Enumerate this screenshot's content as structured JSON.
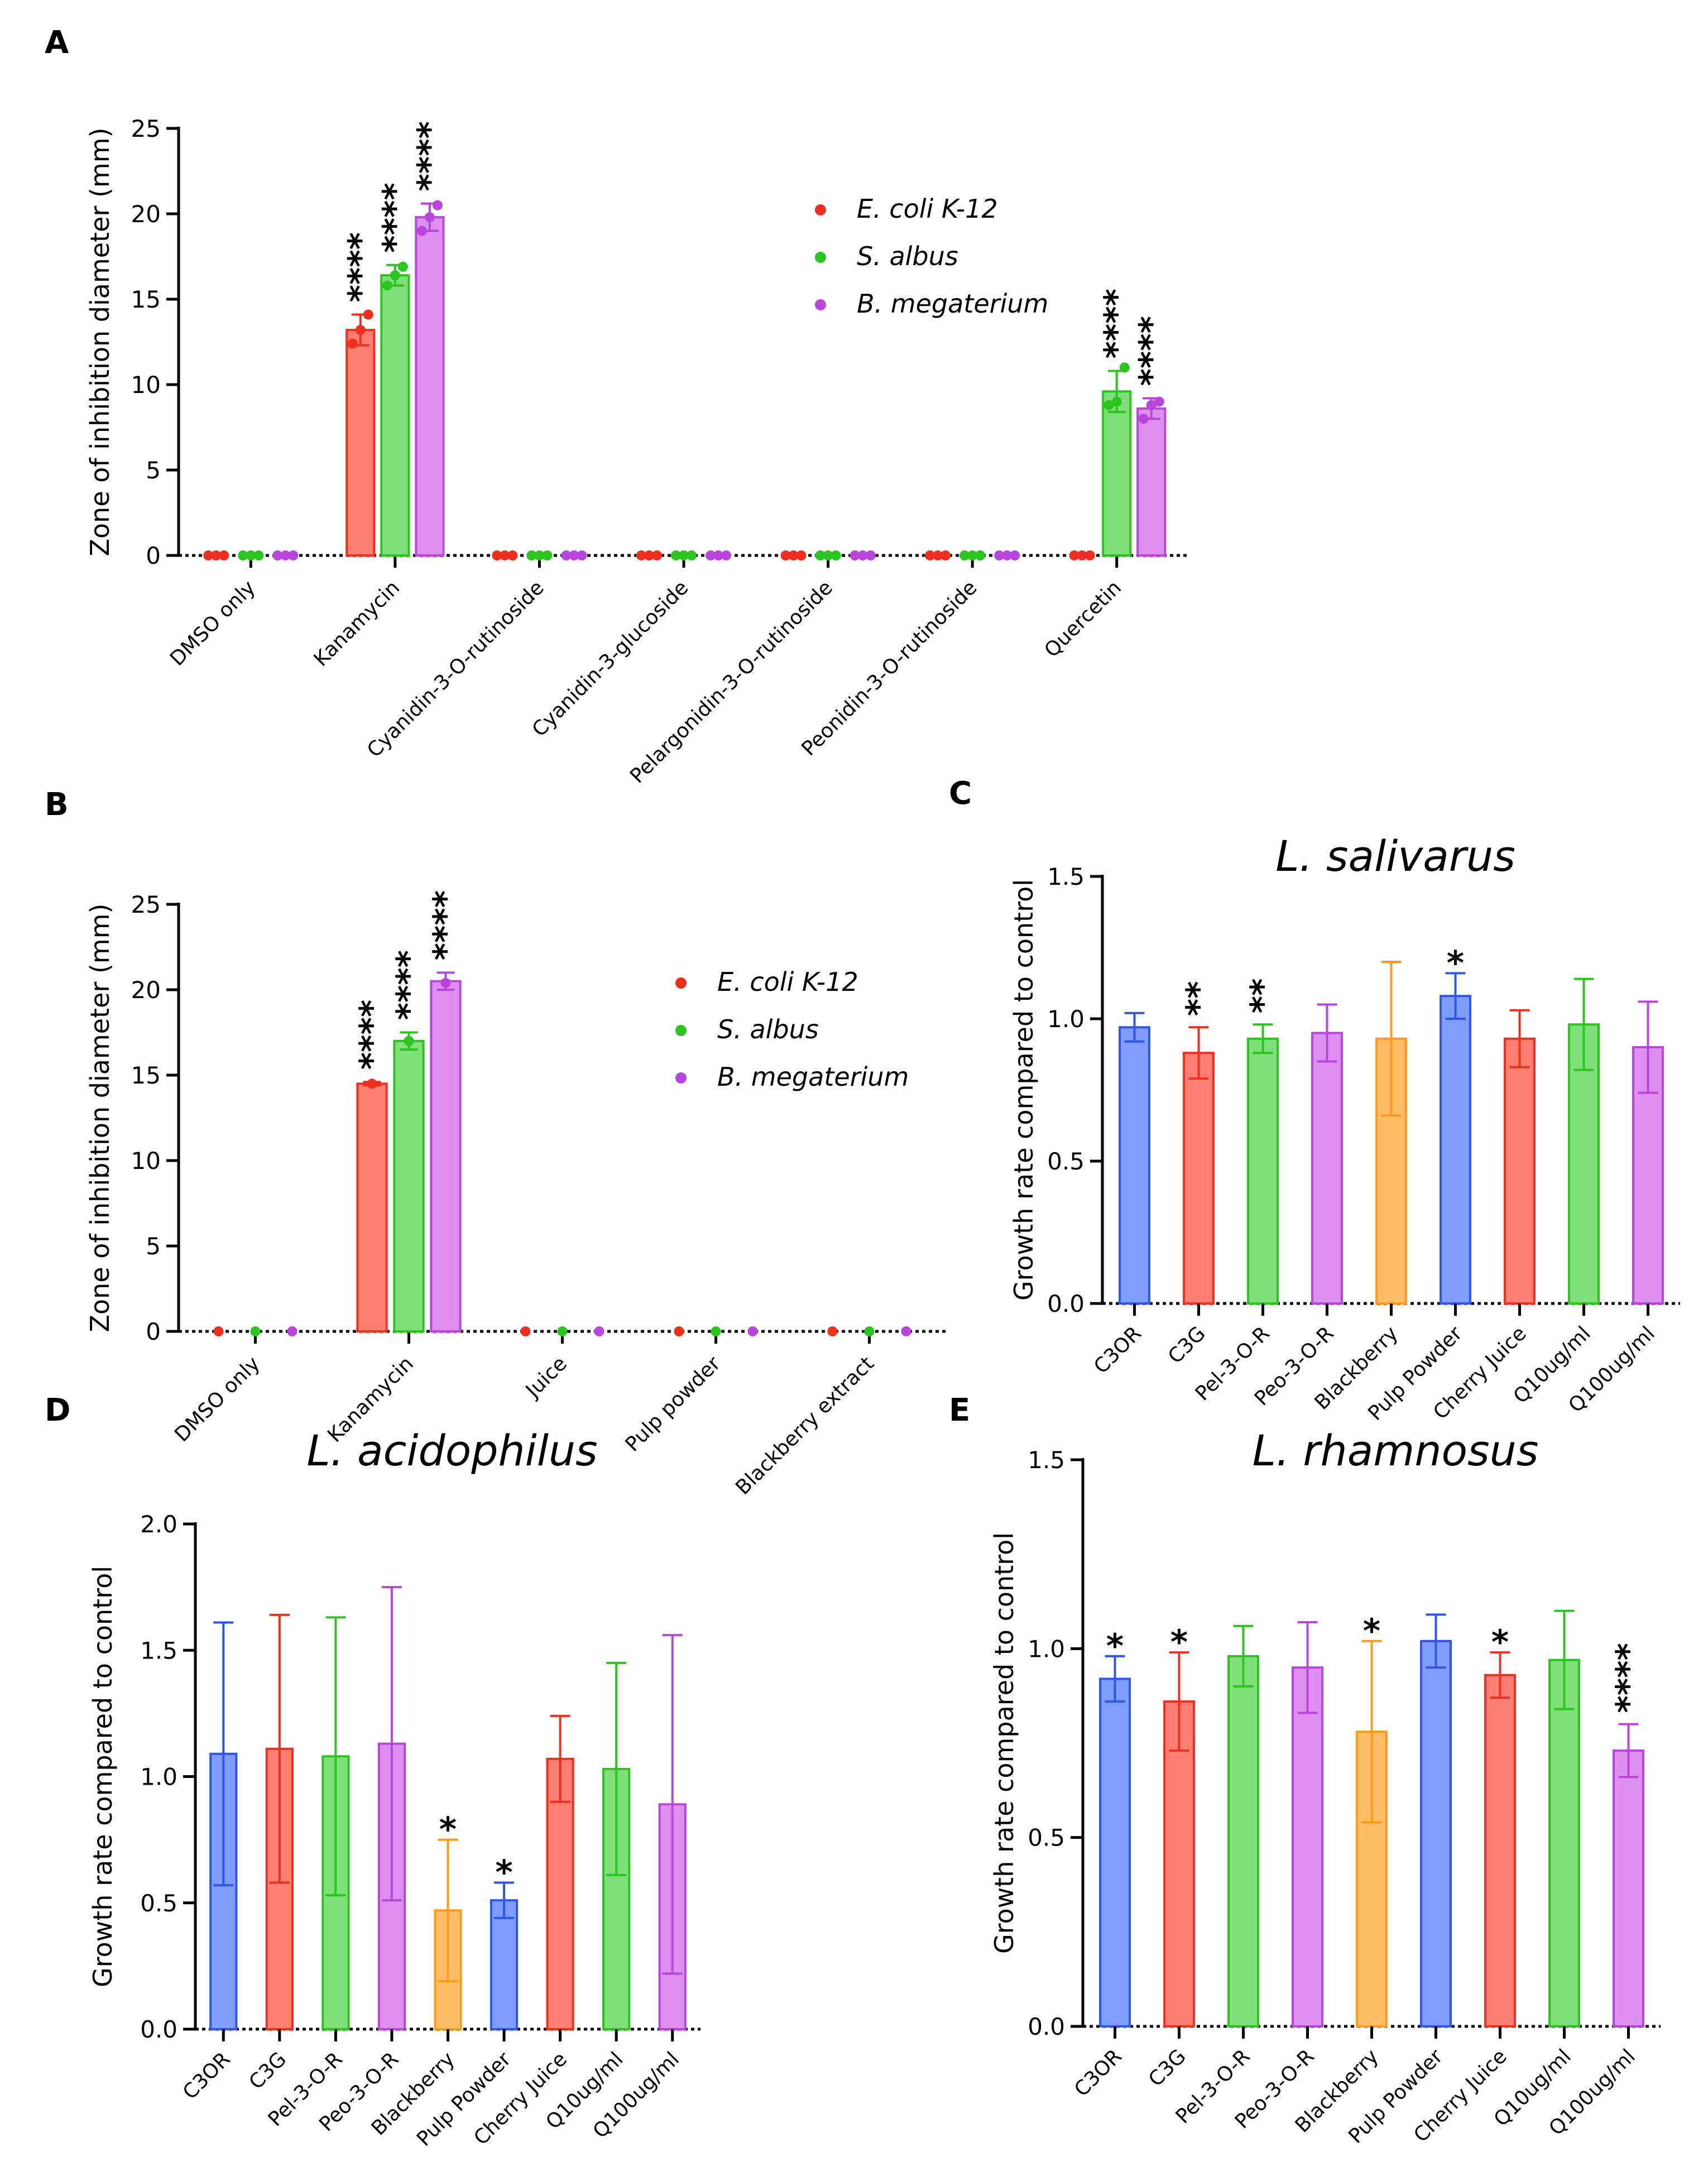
{
  "colors": {
    "red": "#ff7f72",
    "red_edge": "#f0301e",
    "green": "#7fe07a",
    "green_edge": "#2cc41f",
    "purple": "#dd90ef",
    "purple_edge": "#b846dc",
    "blue": "#7f9cff",
    "blue_edge": "#2e56e8",
    "orange": "#ffbe66",
    "orange_edge": "#ff9a1c"
  },
  "chart_data": [
    {
      "panel": "A",
      "type": "bar",
      "title": "",
      "ylabel": "Zone of inhibition diameter (mm)",
      "xlabel": "",
      "ylim": [
        0,
        25
      ],
      "yticks": [
        "0",
        "5",
        "10",
        "15",
        "20",
        "25"
      ],
      "categories": [
        "DMSO only",
        "Kanamycin",
        "Cyanidin-3-O-rutinoside",
        "Cyanidin-3-glucoside",
        "Pelargonidin-3-O-rutinoside",
        "Peonidin-3-O-rutinoside",
        "Quercetin"
      ],
      "legend": {
        "position": "top-right",
        "entries": [
          "E. coli K-12",
          "S. albus",
          "B. megaterium"
        ]
      },
      "series": [
        {
          "name": "E. coli K-12",
          "values": [
            0,
            13.2,
            0,
            0,
            0,
            0,
            0
          ],
          "err": [
            0,
            0.9,
            0,
            0,
            0,
            0,
            0
          ],
          "points": [
            [
              0,
              0,
              0
            ],
            [
              12.4,
              13.2,
              14.1
            ],
            [
              0,
              0,
              0
            ],
            [
              0,
              0,
              0
            ],
            [
              0,
              0,
              0
            ],
            [
              0,
              0,
              0
            ],
            [
              0,
              0,
              0
            ]
          ],
          "stars": [
            "",
            "****",
            "",
            "",
            "",
            "",
            ""
          ]
        },
        {
          "name": "S. albus",
          "values": [
            0,
            16.4,
            0,
            0,
            0,
            0,
            9.6
          ],
          "err": [
            0,
            0.6,
            0,
            0,
            0,
            0,
            1.2
          ],
          "points": [
            [
              0,
              0,
              0
            ],
            [
              15.8,
              16.4,
              16.9
            ],
            [
              0,
              0,
              0
            ],
            [
              0,
              0,
              0
            ],
            [
              0,
              0,
              0
            ],
            [
              0,
              0,
              0
            ],
            [
              8.8,
              9.0,
              11.0
            ]
          ],
          "stars": [
            "",
            "****",
            "",
            "",
            "",
            "",
            "****"
          ]
        },
        {
          "name": "B. megaterium",
          "values": [
            0,
            19.8,
            0,
            0,
            0,
            0,
            8.6
          ],
          "err": [
            0,
            0.8,
            0,
            0,
            0,
            0,
            0.6
          ],
          "points": [
            [
              0,
              0,
              0
            ],
            [
              19.0,
              19.8,
              20.5
            ],
            [
              0,
              0,
              0
            ],
            [
              0,
              0,
              0
            ],
            [
              0,
              0,
              0
            ],
            [
              0,
              0,
              0
            ],
            [
              8.0,
              8.8,
              9.0
            ]
          ],
          "stars": [
            "",
            "****",
            "",
            "",
            "",
            "",
            "****"
          ]
        }
      ]
    },
    {
      "panel": "B",
      "type": "bar",
      "title": "",
      "ylabel": "Zone of inhibition diameter (mm)",
      "xlabel": "",
      "ylim": [
        0,
        25
      ],
      "yticks": [
        "0",
        "5",
        "10",
        "15",
        "20",
        "25"
      ],
      "categories": [
        "DMSO only",
        "Kanamycin",
        "Juice",
        "Pulp powder",
        "Blackberry extract"
      ],
      "legend": {
        "position": "top-right",
        "entries": [
          "E. coli K-12",
          "S. albus",
          "B. megaterium"
        ]
      },
      "series": [
        {
          "name": "E. coli K-12",
          "values": [
            0,
            14.5,
            0,
            0,
            0
          ],
          "err": [
            0,
            0.1,
            0,
            0,
            0
          ],
          "points": [
            [
              0
            ],
            [
              14.5
            ],
            [
              0
            ],
            [
              0
            ],
            [
              0
            ]
          ],
          "stars": [
            "",
            "****",
            "",
            "",
            ""
          ]
        },
        {
          "name": "S. albus",
          "values": [
            0,
            17.0,
            0,
            0,
            0
          ],
          "err": [
            0,
            0.5,
            0,
            0,
            0
          ],
          "points": [
            [
              0
            ],
            [
              17.0
            ],
            [
              0
            ],
            [
              0
            ],
            [
              0
            ]
          ],
          "stars": [
            "",
            "****",
            "",
            "",
            ""
          ]
        },
        {
          "name": "B. megaterium",
          "values": [
            0,
            20.5,
            0,
            0,
            0
          ],
          "err": [
            0,
            0.5,
            0,
            0,
            0
          ],
          "points": [
            [
              0
            ],
            [
              20.4
            ],
            [
              0
            ],
            [
              0
            ],
            [
              0
            ]
          ],
          "stars": [
            "",
            "****",
            "",
            "",
            ""
          ]
        }
      ]
    },
    {
      "panel": "C",
      "type": "bar",
      "title": "L. salivarus",
      "ylabel": "Growth rate compared to control",
      "xlabel": "",
      "ylim": [
        0,
        1.5
      ],
      "yticks": [
        "0.0",
        "0.5",
        "1.0",
        "1.5"
      ],
      "categories": [
        "C3OR",
        "C3G",
        "Pel-3-O-R",
        "Peo-3-O-R",
        "Blackberry",
        "Pulp Powder",
        "Cherry Juice",
        "Q10ug/ml",
        "Q100ug/ml"
      ],
      "values": [
        0.97,
        0.88,
        0.93,
        0.95,
        0.93,
        1.08,
        0.93,
        0.98,
        0.9
      ],
      "err": [
        0.05,
        0.09,
        0.05,
        0.1,
        0.27,
        0.08,
        0.1,
        0.16,
        0.16
      ],
      "bar_colors": [
        "blue",
        "red",
        "green",
        "purple",
        "orange",
        "blue",
        "red",
        "green",
        "purple"
      ],
      "stars": [
        "",
        "**",
        "**",
        "",
        "",
        "*",
        "",
        "",
        ""
      ]
    },
    {
      "panel": "D",
      "type": "bar",
      "title": "L. acidophilus",
      "ylabel": "Growth rate compared to control",
      "xlabel": "",
      "ylim": [
        0,
        2.0
      ],
      "yticks": [
        "0.0",
        "0.5",
        "1.0",
        "1.5",
        "2.0"
      ],
      "categories": [
        "C3OR",
        "C3G",
        "Pel-3-O-R",
        "Peo-3-O-R",
        "Blackberry",
        "Pulp Powder",
        "Cherry Juice",
        "Q10ug/ml",
        "Q100ug/ml"
      ],
      "values": [
        1.09,
        1.11,
        1.08,
        1.13,
        0.47,
        0.51,
        1.07,
        1.03,
        0.89
      ],
      "err": [
        0.52,
        0.53,
        0.55,
        0.62,
        0.28,
        0.07,
        0.17,
        0.42,
        0.67
      ],
      "bar_colors": [
        "blue",
        "red",
        "green",
        "purple",
        "orange",
        "blue",
        "red",
        "green",
        "purple"
      ],
      "stars": [
        "",
        "",
        "",
        "",
        "*",
        "*",
        "",
        "",
        ""
      ]
    },
    {
      "panel": "E",
      "type": "bar",
      "title": "L. rhamnosus",
      "ylabel": "Growth rate compared to control",
      "xlabel": "",
      "ylim": [
        0,
        1.5
      ],
      "yticks": [
        "0.0",
        "0.5",
        "1.0",
        "1.5"
      ],
      "categories": [
        "C3OR",
        "C3G",
        "Pel-3-O-R",
        "Peo-3-O-R",
        "Blackberry",
        "Pulp Powder",
        "Cherry Juice",
        "Q10ug/ml",
        "Q100ug/ml"
      ],
      "values": [
        0.92,
        0.86,
        0.98,
        0.95,
        0.78,
        1.02,
        0.93,
        0.97,
        0.73
      ],
      "err": [
        0.06,
        0.13,
        0.08,
        0.12,
        0.24,
        0.07,
        0.06,
        0.13,
        0.07
      ],
      "bar_colors": [
        "blue",
        "red",
        "green",
        "purple",
        "orange",
        "blue",
        "red",
        "green",
        "purple"
      ],
      "stars": [
        "*",
        "*",
        "",
        "",
        "*",
        "",
        "*",
        "",
        "****"
      ]
    }
  ]
}
